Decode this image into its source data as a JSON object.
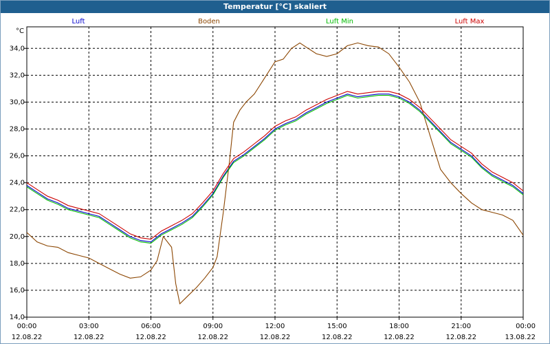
{
  "window": {
    "title": "Temperatur [°C] skaliert"
  },
  "chart_data": {
    "type": "line",
    "title": "Temperatur [°C] skaliert",
    "ylabel": "°C",
    "xlabel": "",
    "ylim": [
      14.0,
      35.6
    ],
    "xlim": [
      0,
      24
    ],
    "grid": true,
    "y_ticks": [
      14.0,
      16.0,
      18.0,
      20.0,
      22.0,
      24.0,
      26.0,
      28.0,
      30.0,
      32.0,
      34.0
    ],
    "y_tick_labels": [
      "14,0",
      "16,0",
      "18,0",
      "20,0",
      "22,0",
      "24,0",
      "26,0",
      "28,0",
      "30,0",
      "32,0",
      "34,0"
    ],
    "x_ticks": [
      0,
      3,
      6,
      9,
      12,
      15,
      18,
      21,
      24
    ],
    "x_tick_labels": [
      {
        "time": "00:00",
        "date": "12.08.22"
      },
      {
        "time": "03:00",
        "date": "12.08.22"
      },
      {
        "time": "06:00",
        "date": "12.08.22"
      },
      {
        "time": "09:00",
        "date": "12.08.22"
      },
      {
        "time": "12:00",
        "date": "12.08.22"
      },
      {
        "time": "15:00",
        "date": "12.08.22"
      },
      {
        "time": "18:00",
        "date": "12.08.22"
      },
      {
        "time": "21:00",
        "date": "12.08.22"
      },
      {
        "time": "00:00",
        "date": "13.08.22"
      }
    ],
    "series": [
      {
        "name": "Luft",
        "color": "#0000cc",
        "points": [
          [
            0,
            23.8
          ],
          [
            0.5,
            23.3
          ],
          [
            1,
            22.8
          ],
          [
            1.5,
            22.5
          ],
          [
            2,
            22.1
          ],
          [
            2.5,
            21.9
          ],
          [
            3,
            21.7
          ],
          [
            3.5,
            21.5
          ],
          [
            4,
            21.0
          ],
          [
            4.5,
            20.5
          ],
          [
            5,
            20.0
          ],
          [
            5.5,
            19.7
          ],
          [
            6,
            19.6
          ],
          [
            6.5,
            20.2
          ],
          [
            7,
            20.6
          ],
          [
            7.5,
            21.0
          ],
          [
            8,
            21.5
          ],
          [
            8.5,
            22.3
          ],
          [
            9,
            23.2
          ],
          [
            9.5,
            24.5
          ],
          [
            10,
            25.6
          ],
          [
            10.5,
            26.1
          ],
          [
            11,
            26.7
          ],
          [
            11.5,
            27.3
          ],
          [
            12,
            28.0
          ],
          [
            12.5,
            28.4
          ],
          [
            13,
            28.7
          ],
          [
            13.5,
            29.2
          ],
          [
            14,
            29.6
          ],
          [
            14.5,
            30.0
          ],
          [
            15,
            30.3
          ],
          [
            15.5,
            30.6
          ],
          [
            16,
            30.4
          ],
          [
            16.5,
            30.5
          ],
          [
            17,
            30.6
          ],
          [
            17.5,
            30.6
          ],
          [
            18,
            30.4
          ],
          [
            18.5,
            30.0
          ],
          [
            19,
            29.4
          ],
          [
            19.5,
            28.6
          ],
          [
            20,
            27.8
          ],
          [
            20.5,
            27.0
          ],
          [
            21,
            26.5
          ],
          [
            21.5,
            26.0
          ],
          [
            22,
            25.2
          ],
          [
            22.5,
            24.6
          ],
          [
            23,
            24.2
          ],
          [
            23.5,
            23.8
          ],
          [
            24,
            23.2
          ]
        ]
      },
      {
        "name": "Boden",
        "color": "#8b4500",
        "points": [
          [
            0,
            20.3
          ],
          [
            0.5,
            19.6
          ],
          [
            1,
            19.3
          ],
          [
            1.5,
            19.2
          ],
          [
            2,
            18.8
          ],
          [
            2.5,
            18.6
          ],
          [
            3,
            18.4
          ],
          [
            3.5,
            18.0
          ],
          [
            4,
            17.6
          ],
          [
            4.5,
            17.2
          ],
          [
            5,
            16.9
          ],
          [
            5.5,
            17.0
          ],
          [
            6,
            17.5
          ],
          [
            6.3,
            18.2
          ],
          [
            6.6,
            20.0
          ],
          [
            7,
            19.2
          ],
          [
            7.2,
            16.5
          ],
          [
            7.4,
            15.0
          ],
          [
            7.8,
            15.6
          ],
          [
            8.2,
            16.2
          ],
          [
            8.6,
            16.9
          ],
          [
            9,
            17.7
          ],
          [
            9.2,
            18.5
          ],
          [
            9.5,
            21.8
          ],
          [
            9.8,
            25.6
          ],
          [
            10,
            28.5
          ],
          [
            10.3,
            29.4
          ],
          [
            10.6,
            30.0
          ],
          [
            11,
            30.6
          ],
          [
            11.5,
            31.8
          ],
          [
            12,
            33.0
          ],
          [
            12.4,
            33.2
          ],
          [
            12.8,
            34.0
          ],
          [
            13.2,
            34.4
          ],
          [
            13.6,
            34.0
          ],
          [
            14,
            33.6
          ],
          [
            14.5,
            33.4
          ],
          [
            15,
            33.6
          ],
          [
            15.5,
            34.2
          ],
          [
            16,
            34.4
          ],
          [
            16.5,
            34.2
          ],
          [
            17,
            34.1
          ],
          [
            17.5,
            33.6
          ],
          [
            18,
            32.6
          ],
          [
            18.5,
            31.5
          ],
          [
            19,
            30.0
          ],
          [
            19.5,
            27.5
          ],
          [
            20,
            25.0
          ],
          [
            20.5,
            24.0
          ],
          [
            21,
            23.2
          ],
          [
            21.5,
            22.5
          ],
          [
            22,
            22.0
          ],
          [
            22.5,
            21.8
          ],
          [
            23,
            21.6
          ],
          [
            23.5,
            21.2
          ],
          [
            24,
            20.1
          ]
        ]
      },
      {
        "name": "Luft Min",
        "color": "#00bb00",
        "points": [
          [
            0,
            23.7
          ],
          [
            0.5,
            23.2
          ],
          [
            1,
            22.7
          ],
          [
            1.5,
            22.4
          ],
          [
            2,
            22.0
          ],
          [
            2.5,
            21.8
          ],
          [
            3,
            21.6
          ],
          [
            3.5,
            21.4
          ],
          [
            4,
            20.9
          ],
          [
            4.5,
            20.4
          ],
          [
            5,
            19.9
          ],
          [
            5.5,
            19.6
          ],
          [
            6,
            19.5
          ],
          [
            6.5,
            20.1
          ],
          [
            7,
            20.5
          ],
          [
            7.5,
            20.9
          ],
          [
            8,
            21.4
          ],
          [
            8.5,
            22.2
          ],
          [
            9,
            23.1
          ],
          [
            9.5,
            24.4
          ],
          [
            10,
            25.5
          ],
          [
            10.5,
            26.0
          ],
          [
            11,
            26.6
          ],
          [
            11.5,
            27.2
          ],
          [
            12,
            27.9
          ],
          [
            12.5,
            28.3
          ],
          [
            13,
            28.6
          ],
          [
            13.5,
            29.1
          ],
          [
            14,
            29.5
          ],
          [
            14.5,
            29.9
          ],
          [
            15,
            30.2
          ],
          [
            15.5,
            30.5
          ],
          [
            16,
            30.3
          ],
          [
            16.5,
            30.4
          ],
          [
            17,
            30.5
          ],
          [
            17.5,
            30.5
          ],
          [
            18,
            30.3
          ],
          [
            18.5,
            29.9
          ],
          [
            19,
            29.3
          ],
          [
            19.5,
            28.5
          ],
          [
            20,
            27.7
          ],
          [
            20.5,
            26.9
          ],
          [
            21,
            26.4
          ],
          [
            21.5,
            25.9
          ],
          [
            22,
            25.1
          ],
          [
            22.5,
            24.5
          ],
          [
            23,
            24.1
          ],
          [
            23.5,
            23.7
          ],
          [
            24,
            23.1
          ]
        ]
      },
      {
        "name": "Luft Max",
        "color": "#cc0000",
        "points": [
          [
            0,
            24.0
          ],
          [
            0.5,
            23.5
          ],
          [
            1,
            23.0
          ],
          [
            1.5,
            22.7
          ],
          [
            2,
            22.3
          ],
          [
            2.5,
            22.1
          ],
          [
            3,
            21.9
          ],
          [
            3.5,
            21.7
          ],
          [
            4,
            21.2
          ],
          [
            4.5,
            20.7
          ],
          [
            5,
            20.2
          ],
          [
            5.5,
            19.9
          ],
          [
            6,
            19.8
          ],
          [
            6.5,
            20.4
          ],
          [
            7,
            20.8
          ],
          [
            7.5,
            21.2
          ],
          [
            8,
            21.7
          ],
          [
            8.5,
            22.5
          ],
          [
            9,
            23.4
          ],
          [
            9.5,
            24.7
          ],
          [
            10,
            25.8
          ],
          [
            10.5,
            26.3
          ],
          [
            11,
            26.9
          ],
          [
            11.5,
            27.5
          ],
          [
            12,
            28.2
          ],
          [
            12.5,
            28.6
          ],
          [
            13,
            28.9
          ],
          [
            13.5,
            29.4
          ],
          [
            14,
            29.8
          ],
          [
            14.5,
            30.2
          ],
          [
            15,
            30.5
          ],
          [
            15.5,
            30.8
          ],
          [
            16,
            30.6
          ],
          [
            16.5,
            30.7
          ],
          [
            17,
            30.8
          ],
          [
            17.5,
            30.8
          ],
          [
            18,
            30.6
          ],
          [
            18.5,
            30.2
          ],
          [
            19,
            29.6
          ],
          [
            19.5,
            28.8
          ],
          [
            20,
            28.0
          ],
          [
            20.5,
            27.2
          ],
          [
            21,
            26.7
          ],
          [
            21.5,
            26.2
          ],
          [
            22,
            25.4
          ],
          [
            22.5,
            24.8
          ],
          [
            23,
            24.4
          ],
          [
            23.5,
            24.0
          ],
          [
            24,
            23.4
          ]
        ]
      }
    ]
  }
}
